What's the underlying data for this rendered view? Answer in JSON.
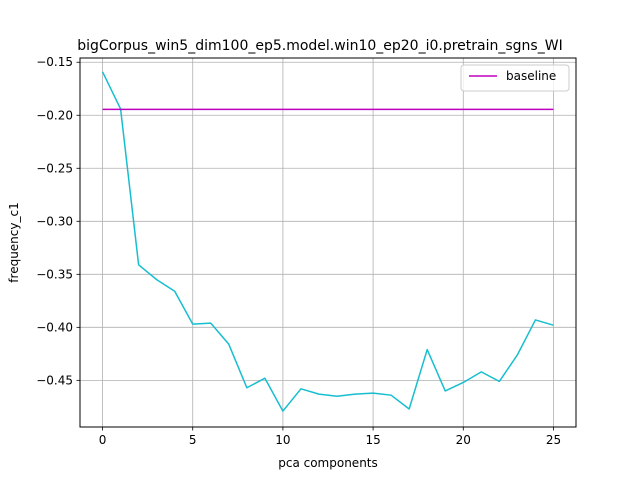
{
  "chart_data": {
    "type": "line",
    "title": "bigCorpus_win5_dim100_ep5.model.win10_ep20_i0.pretrain_sgns_WI",
    "xlabel": "pca components",
    "ylabel": "frequency_c1",
    "xlim": [
      -1.25,
      26.25
    ],
    "ylim": [
      -0.494,
      -0.146
    ],
    "grid": true,
    "legend_position": "top-right",
    "x_ticks": [
      0,
      5,
      10,
      15,
      20,
      25
    ],
    "x_tick_labels": [
      "0",
      "5",
      "10",
      "15",
      "20",
      "25"
    ],
    "y_ticks": [
      -0.15,
      -0.2,
      -0.25,
      -0.3,
      -0.35,
      -0.4,
      -0.45
    ],
    "y_tick_labels": [
      "−0.15",
      "−0.20",
      "−0.25",
      "−0.30",
      "−0.35",
      "−0.40",
      "−0.45"
    ],
    "series": [
      {
        "color": "#17becf",
        "x": [
          0,
          1,
          2,
          3,
          4,
          5,
          6,
          7,
          8,
          9,
          10,
          11,
          12,
          13,
          14,
          15,
          16,
          17,
          18,
          19,
          20,
          21,
          22,
          23,
          24,
          25
        ],
        "y": [
          -0.159,
          -0.194,
          -0.341,
          -0.355,
          -0.366,
          -0.397,
          -0.396,
          -0.416,
          -0.457,
          -0.448,
          -0.479,
          -0.458,
          -0.463,
          -0.465,
          -0.463,
          -0.462,
          -0.464,
          -0.477,
          -0.421,
          -0.46,
          -0.452,
          -0.442,
          -0.451,
          -0.426,
          -0.393,
          -0.398
        ]
      },
      {
        "name": "baseline",
        "color": "#bf00bf",
        "x": [
          0,
          25
        ],
        "y": [
          -0.1945,
          -0.1945
        ]
      }
    ]
  }
}
